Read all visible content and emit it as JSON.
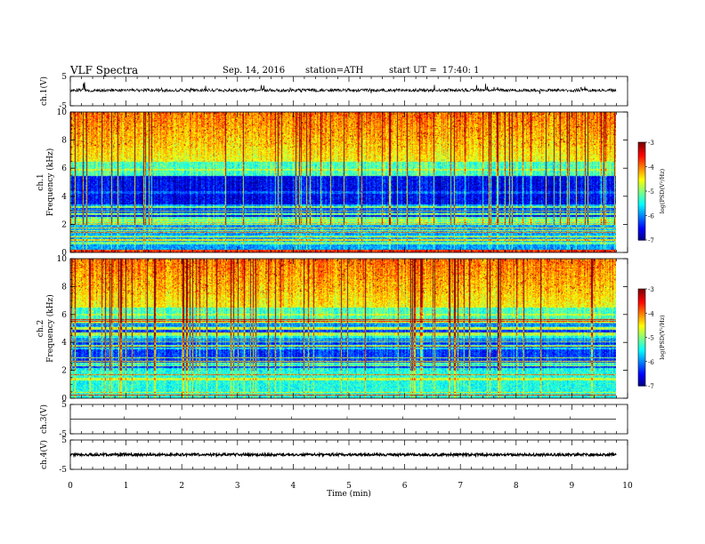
{
  "header": {
    "title": "VLF  Spectra",
    "date": "Sep. 14, 2016",
    "station": "station=ATH",
    "start_label": "start  UT  =",
    "start_time": "17:40: 1"
  },
  "chart_data": [
    {
      "type": "line",
      "name": "ch1-waveform",
      "ylabel": "ch.1(V)",
      "ylim": [
        -5,
        5
      ],
      "yticks": [
        "5",
        "-5"
      ],
      "xlim": [
        0,
        10
      ],
      "baseline": 0.3,
      "noise_amplitude": 1.5
    },
    {
      "type": "heatmap",
      "name": "ch1-spectrogram",
      "ylabel": [
        "ch.1",
        "Frequency  (kHz)"
      ],
      "ylim": [
        0,
        10
      ],
      "yticks": [
        "0",
        "2",
        "4",
        "6",
        "8",
        "10"
      ],
      "xlim": [
        0,
        9.8
      ],
      "colorbar": {
        "label": "log(PSD(V²/Hz)",
        "range": [
          -7,
          -3
        ],
        "ticks": [
          "-3",
          "-4",
          "-5",
          "-6",
          "-7"
        ]
      }
    },
    {
      "type": "heatmap",
      "name": "ch2-spectrogram",
      "ylabel": [
        "ch.2",
        "Frequency  (kHz)"
      ],
      "ylim": [
        0,
        10
      ],
      "yticks": [
        "0",
        "2",
        "4",
        "6",
        "8",
        "10"
      ],
      "xlim": [
        0,
        9.8
      ],
      "colorbar": {
        "label": "log(PSD(V²/Hz)",
        "range": [
          -7,
          -3
        ],
        "ticks": [
          "-3",
          "-4",
          "-5",
          "-6",
          "-7"
        ]
      }
    },
    {
      "type": "line",
      "name": "ch3-waveform",
      "ylabel": "ch.3(V)",
      "ylim": [
        -5,
        5
      ],
      "yticks": [
        "5",
        "-5"
      ],
      "xlim": [
        0,
        10
      ],
      "baseline": 0,
      "noise_amplitude": 0
    },
    {
      "type": "line",
      "name": "ch4-waveform",
      "ylabel": "ch.4(V)",
      "ylim": [
        -5,
        5
      ],
      "yticks": [
        "5",
        "-5"
      ],
      "xlim": [
        0,
        10
      ],
      "baseline": 0,
      "noise_amplitude": 0.15
    }
  ],
  "xaxis": {
    "label": "Time  (min)",
    "range": [
      0,
      10
    ],
    "ticks": [
      "0",
      "1",
      "2",
      "3",
      "4",
      "5",
      "6",
      "7",
      "8",
      "9",
      "10"
    ]
  }
}
